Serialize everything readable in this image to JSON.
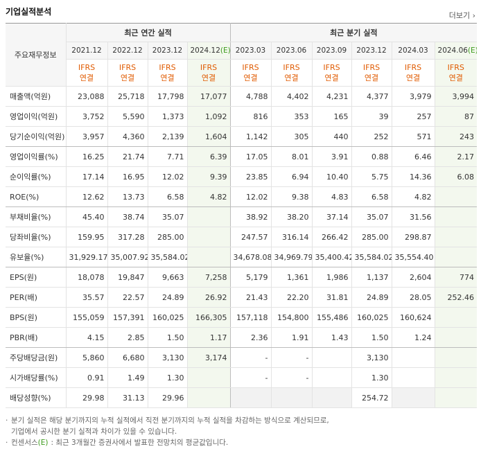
{
  "header": {
    "title": "기업실적분석",
    "more": "더보기"
  },
  "table": {
    "corner": "주요재무정보",
    "groups": [
      {
        "label": "최근 연간 실적",
        "periods": [
          {
            "date": "2021.12",
            "standard": "IFRS",
            "basis": "연결"
          },
          {
            "date": "2022.12",
            "standard": "IFRS",
            "basis": "연결"
          },
          {
            "date": "2023.12",
            "standard": "IFRS",
            "basis": "연결"
          },
          {
            "date": "2024.12",
            "estimate": "(E)",
            "standard": "IFRS",
            "basis": "연결"
          }
        ]
      },
      {
        "label": "최근 분기 실적",
        "periods": [
          {
            "date": "2023.03",
            "standard": "IFRS",
            "basis": "연결"
          },
          {
            "date": "2023.06",
            "standard": "IFRS",
            "basis": "연결"
          },
          {
            "date": "2023.09",
            "standard": "IFRS",
            "basis": "연결"
          },
          {
            "date": "2023.12",
            "standard": "IFRS",
            "basis": "연결"
          },
          {
            "date": "2024.03",
            "standard": "IFRS",
            "basis": "연결"
          },
          {
            "date": "2024.06",
            "estimate": "(E)",
            "standard": "IFRS",
            "basis": "연결"
          }
        ]
      }
    ],
    "rows": [
      {
        "label": "매출액(억원)",
        "values": [
          "23,088",
          "25,718",
          "17,798",
          "17,077",
          "4,788",
          "4,402",
          "4,231",
          "4,377",
          "3,979",
          "3,994"
        ]
      },
      {
        "label": "영업이익(억원)",
        "values": [
          "3,752",
          "5,590",
          "1,373",
          "1,092",
          "816",
          "353",
          "165",
          "39",
          "257",
          "87"
        ]
      },
      {
        "label": "당기순이익(억원)",
        "values": [
          "3,957",
          "4,360",
          "2,139",
          "1,604",
          "1,142",
          "305",
          "440",
          "252",
          "571",
          "243"
        ]
      },
      {
        "label": "영업이익률(%)",
        "values": [
          "16.25",
          "21.74",
          "7.71",
          "6.39",
          "17.05",
          "8.01",
          "3.91",
          "0.88",
          "6.46",
          "2.17"
        ]
      },
      {
        "label": "순이익률(%)",
        "values": [
          "17.14",
          "16.95",
          "12.02",
          "9.39",
          "23.85",
          "6.94",
          "10.40",
          "5.75",
          "14.36",
          "6.08"
        ]
      },
      {
        "label": "ROE(%)",
        "values": [
          "12.62",
          "13.73",
          "6.58",
          "4.82",
          "12.02",
          "9.38",
          "4.83",
          "6.58",
          "4.82",
          null
        ]
      },
      {
        "label": "부채비율(%)",
        "values": [
          "45.40",
          "38.74",
          "35.07",
          null,
          "38.92",
          "38.20",
          "37.14",
          "35.07",
          "31.56",
          null
        ]
      },
      {
        "label": "당좌비율(%)",
        "values": [
          "159.95",
          "317.28",
          "285.00",
          null,
          "247.57",
          "316.14",
          "266.42",
          "285.00",
          "298.87",
          null
        ]
      },
      {
        "label": "유보율(%)",
        "values": [
          "31,929.17",
          "35,007.92",
          "35,584.02",
          null,
          "34,678.08",
          "34,969.79",
          "35,400.42",
          "35,584.02",
          "35,554.40",
          null
        ]
      },
      {
        "label": "EPS(원)",
        "values": [
          "18,078",
          "19,847",
          "9,663",
          "7,258",
          "5,179",
          "1,361",
          "1,986",
          "1,137",
          "2,604",
          "774"
        ]
      },
      {
        "label": "PER(배)",
        "values": [
          "35.57",
          "22.57",
          "24.89",
          "26.92",
          "21.43",
          "22.20",
          "31.81",
          "24.89",
          "28.05",
          "252.46"
        ]
      },
      {
        "label": "BPS(원)",
        "values": [
          "155,059",
          "157,391",
          "160,025",
          "166,305",
          "157,118",
          "154,800",
          "155,486",
          "160,025",
          "160,624",
          null
        ]
      },
      {
        "label": "PBR(배)",
        "values": [
          "4.15",
          "2.85",
          "1.50",
          "1.17",
          "2.36",
          "1.91",
          "1.43",
          "1.50",
          "1.24",
          null
        ]
      },
      {
        "label": "주당배당금(원)",
        "values": [
          "5,860",
          "6,680",
          "3,130",
          "3,174",
          "-",
          "-",
          null,
          "3,130",
          null,
          null
        ]
      },
      {
        "label": "시가배당률(%)",
        "values": [
          "0.91",
          "1.49",
          "1.30",
          null,
          "-",
          "-",
          null,
          "1.30",
          null,
          null
        ]
      },
      {
        "label": "배당성향(%)",
        "values": [
          "29.98",
          "31.13",
          "29.96",
          null,
          null,
          null,
          null,
          "254.72",
          null,
          null
        ]
      }
    ]
  },
  "notes": [
    {
      "lines": [
        "분기 실적은 해당 분기까지의 누적 실적에서 직전 분기까지의 누적 실적을 차감하는 방식으로 계산되므로,",
        "기업에서 공시한 분기 실적과 차이가 있을 수 있습니다."
      ]
    },
    {
      "term": "컨센서스",
      "estimate": "(E)",
      "text": ": 최근 3개월간 증권사에서 발표한 전망치의 평균값입니다."
    }
  ]
}
